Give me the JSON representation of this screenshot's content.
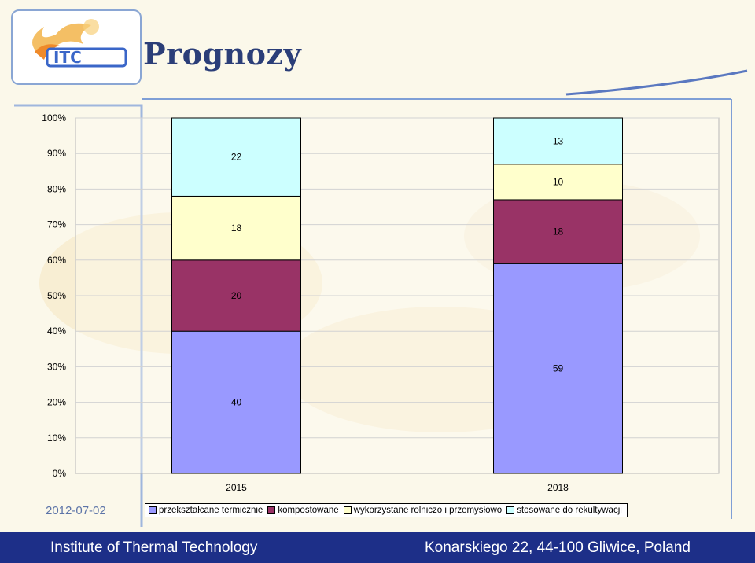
{
  "slide": {
    "title": "Prognozy",
    "date": "2012-07-02",
    "footer_left": "Institute of Thermal Technology",
    "footer_right": "Konarskiego 22, 44-100 Gliwice, Poland",
    "logo_text": "ITC"
  },
  "colors": {
    "przeksztalcane": "#9999ff",
    "kompostowane": "#993366",
    "wykorzystane": "#ffffcc",
    "stosowane": "#ccffff",
    "footer": "#1d2f88",
    "title": "#2b3e78"
  },
  "chart_data": {
    "type": "bar",
    "stacked": "percent",
    "categories": [
      "2015",
      "2018"
    ],
    "series": [
      {
        "name": "przekształcane termicznie",
        "values": [
          40,
          59
        ]
      },
      {
        "name": "kompostowane",
        "values": [
          20,
          18
        ]
      },
      {
        "name": "wykorzystane rolniczo i przemysłowo",
        "values": [
          18,
          10
        ]
      },
      {
        "name": "stosowane do rekultywacji",
        "values": [
          22,
          13
        ]
      }
    ],
    "y_ticks": [
      "0%",
      "10%",
      "20%",
      "30%",
      "40%",
      "50%",
      "60%",
      "70%",
      "80%",
      "90%",
      "100%"
    ],
    "ylim": [
      0,
      100
    ],
    "grid": true,
    "legend": "bottom"
  }
}
